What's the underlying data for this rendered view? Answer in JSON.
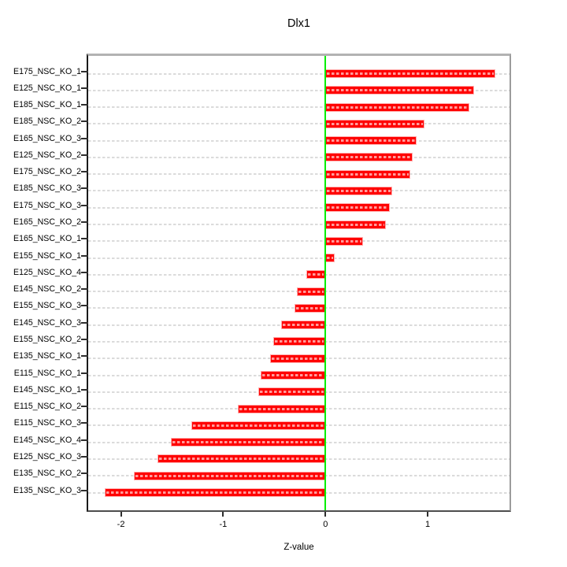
{
  "chart_data": {
    "type": "bar",
    "orientation": "horizontal",
    "title": "Dlx1",
    "xlabel": "Z-value",
    "ylabel": "",
    "categories": [
      "E175_NSC_KO_1",
      "E125_NSC_KO_1",
      "E185_NSC_KO_1",
      "E185_NSC_KO_2",
      "E165_NSC_KO_3",
      "E125_NSC_KO_2",
      "E175_NSC_KO_2",
      "E185_NSC_KO_3",
      "E175_NSC_KO_3",
      "E165_NSC_KO_2",
      "E165_NSC_KO_1",
      "E155_NSC_KO_1",
      "E125_NSC_KO_4",
      "E145_NSC_KO_2",
      "E155_NSC_KO_3",
      "E145_NSC_KO_3",
      "E155_NSC_KO_2",
      "E135_NSC_KO_1",
      "E115_NSC_KO_1",
      "E145_NSC_KO_1",
      "E115_NSC_KO_2",
      "E115_NSC_KO_3",
      "E145_NSC_KO_4",
      "E125_NSC_KO_3",
      "E135_NSC_KO_2",
      "E135_NSC_KO_3"
    ],
    "values": [
      1.66,
      1.45,
      1.41,
      0.97,
      0.89,
      0.85,
      0.83,
      0.65,
      0.63,
      0.59,
      0.37,
      0.09,
      -0.19,
      -0.28,
      -0.3,
      -0.43,
      -0.51,
      -0.54,
      -0.63,
      -0.66,
      -0.86,
      -1.31,
      -1.51,
      -1.64,
      -1.87,
      -2.16
    ],
    "xlim": [
      -2.32,
      1.8
    ],
    "xticks": [
      -2,
      -1,
      0,
      1
    ],
    "xtick_labels": [
      "-2",
      "-1",
      "0",
      "1"
    ],
    "zero_reference_line": 0,
    "grid": "dashed-per-row-horizontal",
    "legend": "none",
    "colors": {
      "bar": "#FF0000",
      "bar_dash": "#FF9C9C",
      "zero_line": "#00EE00",
      "gridline": "#DBDBDB",
      "text": "#000000"
    }
  }
}
